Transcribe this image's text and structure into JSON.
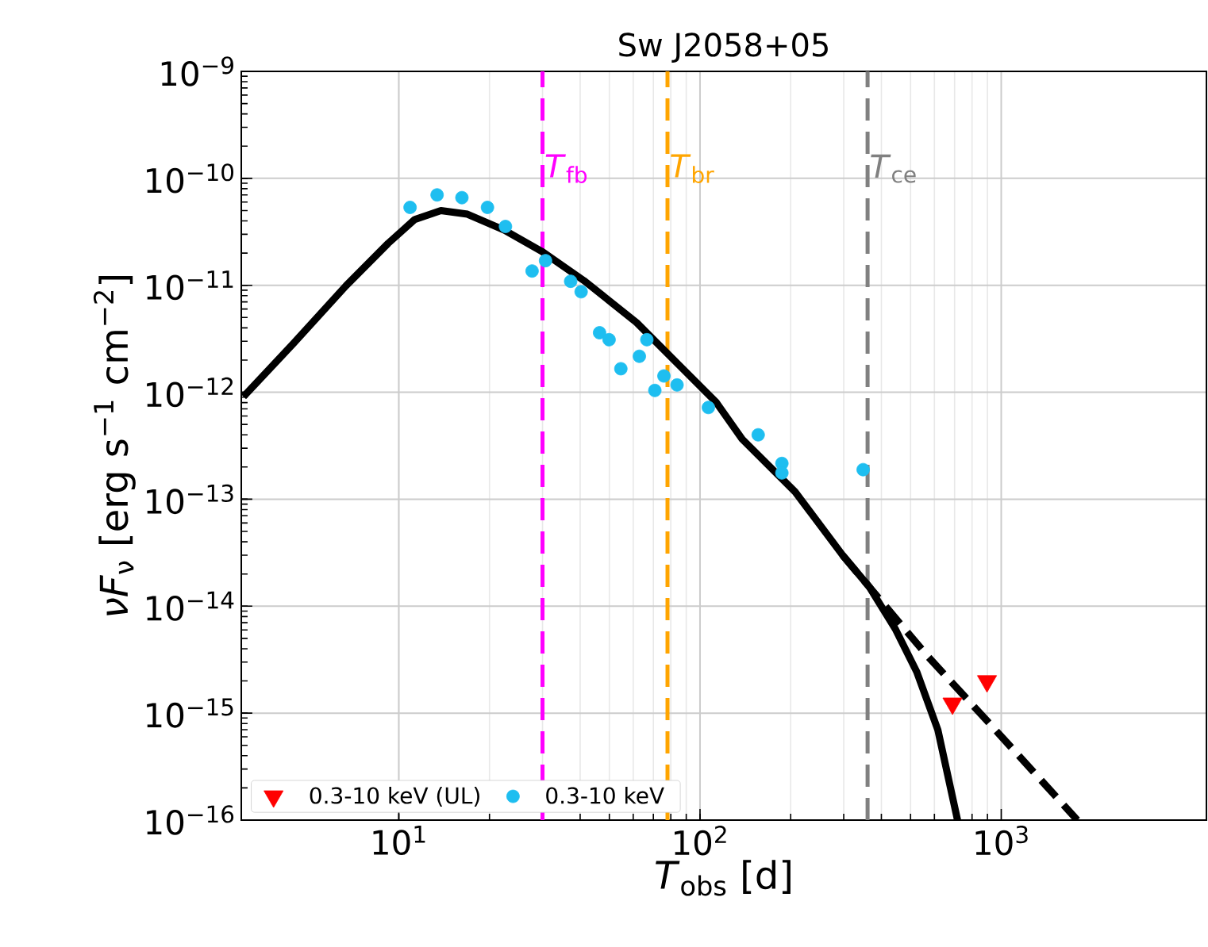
{
  "chart_data": {
    "type": "line",
    "title": "Sw J2058+05",
    "xlabel": "*T*$_{obs}$ [d]",
    "ylabel": "*νF*$_{ν}$ [erg s$^{−1}$ cm$^{−2}$]",
    "log": "xy",
    "grid": true,
    "legend": "bottom left",
    "xlim": [
      3,
      4800
    ],
    "ylim": [
      1e-16,
      1e-09
    ],
    "xticks": [
      {
        "value": 10,
        "label": "10$^{1}$"
      },
      {
        "value": 100,
        "label": "10$^{2}$"
      },
      {
        "value": 1000,
        "label": "10$^{3}$"
      }
    ],
    "yticks": [
      {
        "value": 1e-16,
        "label": "10$^{−16}$"
      },
      {
        "value": 1e-15,
        "label": "10$^{−15}$"
      },
      {
        "value": 1e-14,
        "label": "10$^{−14}$"
      },
      {
        "value": 1e-13,
        "label": "10$^{−13}$"
      },
      {
        "value": 1e-12,
        "label": "10$^{−12}$"
      },
      {
        "value": 1e-11,
        "label": "10$^{−11}$"
      },
      {
        "value": 1e-10,
        "label": "10$^{−10}$"
      },
      {
        "value": 1e-09,
        "label": "10$^{−9}$"
      }
    ],
    "ref_lines": [
      {
        "axis": "x",
        "value": 30,
        "label": "*T*$_{fb}$",
        "color": "#ff00ff",
        "line_style": "dashed"
      },
      {
        "axis": "x",
        "value": 78,
        "label": "*T*$_{br}$",
        "color": "#ffa500",
        "line_style": "dashed"
      },
      {
        "axis": "x",
        "value": 360,
        "label": "*T*$_{ce}$",
        "color": "#808080",
        "line_style": "dashed"
      }
    ],
    "series": [
      {
        "color": "#000000",
        "marker": "none",
        "line_style": "solid",
        "x": [
          3.05,
          4.46,
          6.68,
          9.22,
          11.3,
          13.8,
          16.9,
          22.4,
          29.8,
          41.1,
          61.6,
          85.1,
          113,
          138,
          207,
          298,
          365,
          446,
          524,
          616,
          716
        ],
        "values": [
          9.1e-13,
          2.84e-12,
          9.9e-12,
          2.47e-11,
          4.13e-11,
          5e-11,
          4.62e-11,
          3.28e-11,
          2.08e-11,
          1.11e-11,
          4.48e-12,
          1.8e-12,
          8.1e-13,
          3.65e-13,
          1.17e-13,
          2.98e-14,
          1.51e-14,
          6.05e-15,
          2.44e-15,
          6.97e-16,
          1e-16
        ]
      },
      {
        "color": "#000000",
        "marker": "none",
        "line_style": "dashed",
        "x": [
          298,
          365,
          568,
          922,
          1789
        ],
        "values": [
          2.98e-14,
          1.51e-14,
          3.44e-15,
          7.8e-16,
          1e-16
        ]
      },
      {
        "type": "scatter",
        "name": "0.3-10 keV (UL)",
        "color": "#ff0000",
        "marker": "triangle",
        "x": [
          689,
          897
        ],
        "values": [
          1.23e-15,
          1.99e-15
        ]
      },
      {
        "type": "scatter",
        "name": "0.3-10 keV",
        "color": "#1ebef0",
        "marker": "circle",
        "x": [
          10.9,
          13.4,
          16.2,
          19.7,
          22.6,
          27.7,
          30.7,
          37.2,
          40.3,
          46.4,
          49.9,
          54.6,
          62.9,
          66.6,
          70.8,
          75.9,
          83.9,
          106.6,
          156,
          187,
          187,
          348
        ],
        "values": [
          5.35e-11,
          7e-11,
          6.6e-11,
          5.35e-11,
          3.55e-11,
          1.36e-11,
          1.7e-11,
          1.09e-11,
          8.7e-12,
          3.6e-12,
          3.1e-12,
          1.66e-12,
          2.17e-12,
          3.1e-12,
          1.04e-12,
          1.42e-12,
          1.17e-12,
          7.2e-13,
          4e-13,
          2.16e-13,
          1.76e-13,
          1.89e-13
        ]
      }
    ]
  }
}
